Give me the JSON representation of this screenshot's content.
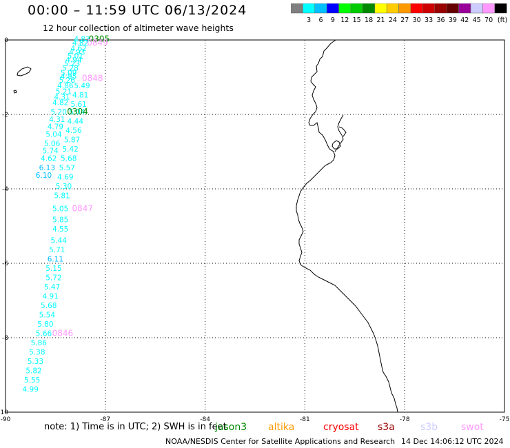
{
  "header": {
    "title": "00:00 – 11:59 UTC 06/13/2024",
    "subtitle": "12 hour collection of altimeter wave heights"
  },
  "legend": {
    "unit": "(ft)",
    "bins": [
      {
        "label": "",
        "color": "#7f7f7f"
      },
      {
        "label": "3",
        "color": "#00ffff"
      },
      {
        "label": "6",
        "color": "#00bfff"
      },
      {
        "label": "9",
        "color": "#0000ff"
      },
      {
        "label": "12",
        "color": "#00ff00"
      },
      {
        "label": "15",
        "color": "#00cc00"
      },
      {
        "label": "18",
        "color": "#008800"
      },
      {
        "label": "21",
        "color": "#ffff00"
      },
      {
        "label": "24",
        "color": "#ffcc00"
      },
      {
        "label": "27",
        "color": "#ff9900"
      },
      {
        "label": "30",
        "color": "#ff0000"
      },
      {
        "label": "33",
        "color": "#cc0000"
      },
      {
        "label": "36",
        "color": "#990000"
      },
      {
        "label": "39",
        "color": "#660000"
      },
      {
        "label": "42",
        "color": "#990099"
      },
      {
        "label": "45",
        "color": "#ccccff"
      },
      {
        "label": "70",
        "color": "#ff99ff"
      },
      {
        "label": "",
        "color": "#000000"
      }
    ]
  },
  "map": {
    "lon_range": [
      -90,
      -75
    ],
    "lat_range": [
      -10,
      0
    ],
    "x_ticks": [
      "-90",
      "-87",
      "-84",
      "-81",
      "-78",
      "-75"
    ],
    "y_ticks": [
      "0",
      "-2",
      "-4",
      "-6",
      "-8",
      "-10"
    ]
  },
  "track_values": [
    {
      "lon": -87.7,
      "lat": -0.05,
      "text": "4.83",
      "color": "#00ffff"
    },
    {
      "lon": -87.75,
      "lat": -0.15,
      "text": "4.82",
      "color": "#00ffff"
    },
    {
      "lon": -87.8,
      "lat": -0.3,
      "text": "4.62",
      "color": "#00ffff"
    },
    {
      "lon": -87.85,
      "lat": -0.4,
      "text": "4.93",
      "color": "#00ffff"
    },
    {
      "lon": -87.9,
      "lat": -0.5,
      "text": "5.01",
      "color": "#00ffff"
    },
    {
      "lon": -87.95,
      "lat": -0.6,
      "text": "4.94",
      "color": "#00ffff"
    },
    {
      "lon": -88.0,
      "lat": -0.7,
      "text": "5.23",
      "color": "#00ffff"
    },
    {
      "lon": -88.05,
      "lat": -0.82,
      "text": "5.28",
      "color": "#00ffff"
    },
    {
      "lon": -88.1,
      "lat": -0.95,
      "text": "5.09",
      "color": "#00ffff"
    },
    {
      "lon": -88.1,
      "lat": -1.05,
      "text": "4.95",
      "color": "#00ffff"
    },
    {
      "lon": -88.15,
      "lat": -1.15,
      "text": "5.26",
      "color": "#00ffff"
    },
    {
      "lon": -88.2,
      "lat": -1.3,
      "text": "4.86",
      "color": "#00ffff"
    },
    {
      "lon": -88.25,
      "lat": -1.45,
      "text": "5.21",
      "color": "#00ffff"
    },
    {
      "lon": -88.3,
      "lat": -1.6,
      "text": "4.31",
      "color": "#00ffff"
    },
    {
      "lon": -88.35,
      "lat": -1.75,
      "text": "4.82",
      "color": "#00ffff"
    },
    {
      "lon": -88.4,
      "lat": -2.0,
      "text": "5.20",
      "color": "#00ffff"
    },
    {
      "lon": -88.45,
      "lat": -2.2,
      "text": "4.31",
      "color": "#00ffff"
    },
    {
      "lon": -88.5,
      "lat": -2.4,
      "text": "4.79",
      "color": "#00ffff"
    },
    {
      "lon": -88.55,
      "lat": -2.6,
      "text": "5.04",
      "color": "#00ffff"
    },
    {
      "lon": -88.6,
      "lat": -2.85,
      "text": "5.06",
      "color": "#00ffff"
    },
    {
      "lon": -88.65,
      "lat": -3.05,
      "text": "5.74",
      "color": "#00ffff"
    },
    {
      "lon": -88.7,
      "lat": -3.25,
      "text": "4.62",
      "color": "#00ffff"
    },
    {
      "lon": -88.75,
      "lat": -3.5,
      "text": "6.13",
      "color": "#00bfff"
    },
    {
      "lon": -88.85,
      "lat": -3.7,
      "text": "6.10",
      "color": "#00bfff"
    },
    {
      "lon": -87.7,
      "lat": -1.3,
      "text": "5.49",
      "color": "#00ffff"
    },
    {
      "lon": -87.75,
      "lat": -1.55,
      "text": "4.81",
      "color": "#00ffff"
    },
    {
      "lon": -87.8,
      "lat": -1.8,
      "text": "5.61",
      "color": "#00ffff"
    },
    {
      "lon": -87.85,
      "lat": -2.0,
      "text": "5.04",
      "color": "#00ffff"
    },
    {
      "lon": -87.9,
      "lat": -2.25,
      "text": "4.44",
      "color": "#00ffff"
    },
    {
      "lon": -87.95,
      "lat": -2.5,
      "text": "4.56",
      "color": "#00ffff"
    },
    {
      "lon": -88.0,
      "lat": -2.75,
      "text": "5.87",
      "color": "#00ffff"
    },
    {
      "lon": -88.05,
      "lat": -3.0,
      "text": "5.42",
      "color": "#00ffff"
    },
    {
      "lon": -88.1,
      "lat": -3.25,
      "text": "5.68",
      "color": "#00ffff"
    },
    {
      "lon": -88.15,
      "lat": -3.5,
      "text": "5.57",
      "color": "#00ffff"
    },
    {
      "lon": -88.2,
      "lat": -3.75,
      "text": "4.69",
      "color": "#00ffff"
    },
    {
      "lon": -88.25,
      "lat": -4.0,
      "text": "5.30",
      "color": "#00ffff"
    },
    {
      "lon": -88.3,
      "lat": -4.25,
      "text": "5.81",
      "color": "#00ffff"
    },
    {
      "lon": -88.35,
      "lat": -4.6,
      "text": "5.05",
      "color": "#00ffff"
    },
    {
      "lon": -88.35,
      "lat": -4.9,
      "text": "5.85",
      "color": "#00ffff"
    },
    {
      "lon": -88.35,
      "lat": -5.15,
      "text": "4.55",
      "color": "#00ffff"
    },
    {
      "lon": -88.4,
      "lat": -5.45,
      "text": "5.44",
      "color": "#00ffff"
    },
    {
      "lon": -88.45,
      "lat": -5.7,
      "text": "5.71",
      "color": "#00ffff"
    },
    {
      "lon": -88.5,
      "lat": -5.95,
      "text": "6.11",
      "color": "#00bfff"
    },
    {
      "lon": -88.55,
      "lat": -6.2,
      "text": "5.15",
      "color": "#00ffff"
    },
    {
      "lon": -88.55,
      "lat": -6.45,
      "text": "5.72",
      "color": "#00ffff"
    },
    {
      "lon": -88.6,
      "lat": -6.7,
      "text": "5.47",
      "color": "#00ffff"
    },
    {
      "lon": -88.65,
      "lat": -6.95,
      "text": "4.91",
      "color": "#00ffff"
    },
    {
      "lon": -88.7,
      "lat": -7.2,
      "text": "5.68",
      "color": "#00ffff"
    },
    {
      "lon": -88.75,
      "lat": -7.45,
      "text": "5.54",
      "color": "#00ffff"
    },
    {
      "lon": -88.8,
      "lat": -7.7,
      "text": "5.80",
      "color": "#00ffff"
    },
    {
      "lon": -88.85,
      "lat": -7.95,
      "text": "5.66",
      "color": "#00ffff"
    },
    {
      "lon": -89.0,
      "lat": -8.2,
      "text": "5.86",
      "color": "#00ffff"
    },
    {
      "lon": -89.05,
      "lat": -8.45,
      "text": "5.38",
      "color": "#00ffff"
    },
    {
      "lon": -89.1,
      "lat": -8.7,
      "text": "5.33",
      "color": "#00ffff"
    },
    {
      "lon": -89.15,
      "lat": -8.95,
      "text": "5.82",
      "color": "#00ffff"
    },
    {
      "lon": -89.2,
      "lat": -9.2,
      "text": "5.55",
      "color": "#00ffff"
    },
    {
      "lon": -89.25,
      "lat": -9.45,
      "text": "4.99",
      "color": "#00ffff"
    }
  ],
  "time_labels": [
    {
      "lon": -87.5,
      "lat": -0.05,
      "text": "0305",
      "color": "#008800"
    },
    {
      "lon": -87.55,
      "lat": -0.15,
      "text": "0849",
      "color": "#ff99ff"
    },
    {
      "lon": -87.7,
      "lat": -1.1,
      "text": "0848",
      "color": "#ff99ff"
    },
    {
      "lon": -88.15,
      "lat": -2.0,
      "text": "0304",
      "color": "#008800"
    },
    {
      "lon": -88.0,
      "lat": -4.6,
      "text": "0847",
      "color": "#ff99ff"
    },
    {
      "lon": -88.6,
      "lat": -7.95,
      "text": "0846",
      "color": "#ff99ff"
    }
  ],
  "footer": {
    "note": "note:  1) Time is in UTC; 2) SWH is in feet",
    "satellites": [
      {
        "name": "jason3",
        "color": "#008800"
      },
      {
        "name": "altika",
        "color": "#ff9900"
      },
      {
        "name": "cryosat",
        "color": "#ff0000"
      },
      {
        "name": "s3a",
        "color": "#990000"
      },
      {
        "name": "s3b",
        "color": "#ccccff"
      },
      {
        "name": "swot",
        "color": "#ff99ff"
      }
    ],
    "credit": "NOAA/NESDIS Center for Satellite Applications and Research",
    "generated": "14 Dec 14:06:12 UTC 2024"
  }
}
